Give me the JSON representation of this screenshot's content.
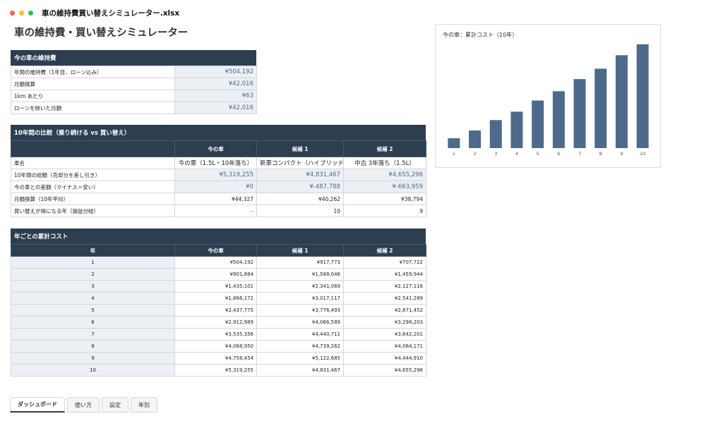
{
  "window": {
    "file_title": "車の維持費買い替えシミュレーター.xlsx"
  },
  "sheet": {
    "title": "車の維持費・買い替えシミュレーター"
  },
  "current_car": {
    "header": "今の車の維持費",
    "rows": [
      {
        "label": "年間の維持費（1年目、ローン込み）",
        "value": "¥504,192"
      },
      {
        "label": "月額換算",
        "value": "¥42,016"
      },
      {
        "label": "1km あたり",
        "value": "¥63"
      },
      {
        "label": "ローンを除いた月額",
        "value": "¥42,016"
      }
    ]
  },
  "comparison": {
    "header": "10年間の比較（乗り続ける vs 買い替え）",
    "columns": [
      "",
      "今の車",
      "候補 1",
      "候補 2"
    ],
    "rows": [
      {
        "label": "車名",
        "values": [
          "今の車（1.5L・10年落ち）",
          "新車コンパクト（ハイブリッド）",
          "中古 3年落ち（1.5L）"
        ]
      },
      {
        "label": "10年間の総額（売却分を差し引き）",
        "values": [
          "¥5,319,255",
          "¥4,831,467",
          "¥4,655,296"
        ]
      },
      {
        "label": "今の車との差額（マイナス＝安い）",
        "values": [
          "¥0",
          "¥-487,788",
          "¥-663,959"
        ]
      },
      {
        "label": "月額換算（10年平均）",
        "values": [
          "¥44,327",
          "¥40,262",
          "¥38,794"
        ]
      },
      {
        "label": "買い替えが得になる年（損益分岐）",
        "values": [
          "-",
          "10",
          "9"
        ]
      }
    ]
  },
  "yearly": {
    "header": "年ごとの累計コスト",
    "columns": [
      "年",
      "今の車",
      "候補 1",
      "候補 2"
    ],
    "rows": [
      [
        "1",
        "¥504,192",
        "¥917,773",
        "¥707,722"
      ],
      [
        "2",
        "¥901,884",
        "¥1,588,046",
        "¥1,459,944"
      ],
      [
        "3",
        "¥1,435,101",
        "¥2,341,069",
        "¥2,127,116"
      ],
      [
        "4",
        "¥1,866,172",
        "¥3,017,117",
        "¥2,541,289"
      ],
      [
        "5",
        "¥2,437,775",
        "¥3,776,493",
        "¥2,871,452"
      ],
      [
        "6",
        "¥2,912,989",
        "¥4,066,589",
        "¥3,298,203"
      ],
      [
        "7",
        "¥3,535,356",
        "¥4,440,711",
        "¥3,642,201"
      ],
      [
        "8",
        "¥4,068,950",
        "¥4,739,262",
        "¥4,084,171"
      ],
      [
        "9",
        "¥4,758,454",
        "¥5,122,685",
        "¥4,444,910"
      ],
      [
        "10",
        "¥5,319,255",
        "¥4,831,467",
        "¥4,655,296"
      ]
    ]
  },
  "chart_data": {
    "type": "bar",
    "title": "今の車：累計コスト（10年）",
    "categories": [
      "1",
      "2",
      "3",
      "4",
      "5",
      "6",
      "7",
      "8",
      "9",
      "10"
    ],
    "values": [
      504192,
      901884,
      1435101,
      1866172,
      2437775,
      2912989,
      3535356,
      4068950,
      4758454,
      5319255
    ],
    "ylim": [
      0,
      5600000
    ],
    "grid": false,
    "legend": "none",
    "color": "#4e6a8a"
  },
  "tabs": [
    {
      "label": "ダッシュボード",
      "active": true
    },
    {
      "label": "使い方",
      "active": false
    },
    {
      "label": "設定",
      "active": false
    },
    {
      "label": "年別",
      "active": false
    }
  ]
}
